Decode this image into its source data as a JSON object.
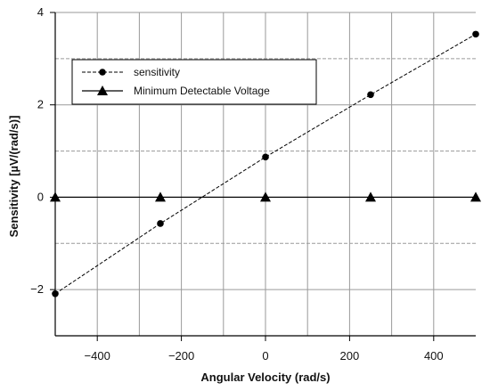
{
  "chart_data": {
    "type": "line",
    "title": "",
    "xlabel": "Angular Velocity (rad/s)",
    "ylabel": "Sensitivity [µV/(rad/s)]",
    "xlim": [
      -500,
      500
    ],
    "ylim": [
      -3,
      4
    ],
    "xticks": [
      -400,
      -200,
      0,
      200,
      400
    ],
    "xtick_labels": [
      "−400",
      "−200",
      "0",
      "200",
      "400"
    ],
    "yticks": [
      -2,
      0,
      2,
      4
    ],
    "ytick_labels": [
      "−2",
      "0",
      "2",
      "4"
    ],
    "x_major_grid": [
      -400,
      -300,
      -200,
      -100,
      0,
      100,
      200,
      300,
      400
    ],
    "y_grid_solid": [
      -2,
      0,
      2,
      4
    ],
    "y_grid_dashed": [
      -3,
      -1,
      1,
      3
    ],
    "grid": true,
    "legend_position": "top-left",
    "series": [
      {
        "name": "sensitivity",
        "marker": "circle",
        "line_style": "dashed",
        "color": "#000000",
        "curve": {
          "x": [
            -500,
            -250,
            0,
            250,
            500
          ],
          "y": [
            -2.09,
            -0.57,
            0.87,
            2.22,
            3.53
          ]
        },
        "points": {
          "x": [
            -500,
            -250,
            0,
            250,
            500
          ],
          "y": [
            -2.09,
            -0.57,
            0.87,
            2.22,
            3.53
          ]
        }
      },
      {
        "name": "Minimum Detectable Voltage",
        "marker": "triangle",
        "line_style": "solid",
        "color": "#000000",
        "curve": {
          "x": [
            -500,
            500
          ],
          "y": [
            0,
            0
          ]
        },
        "points": {
          "x": [
            -500,
            -250,
            0,
            250,
            500
          ],
          "y": [
            0,
            0,
            0,
            0,
            0
          ]
        }
      }
    ]
  }
}
